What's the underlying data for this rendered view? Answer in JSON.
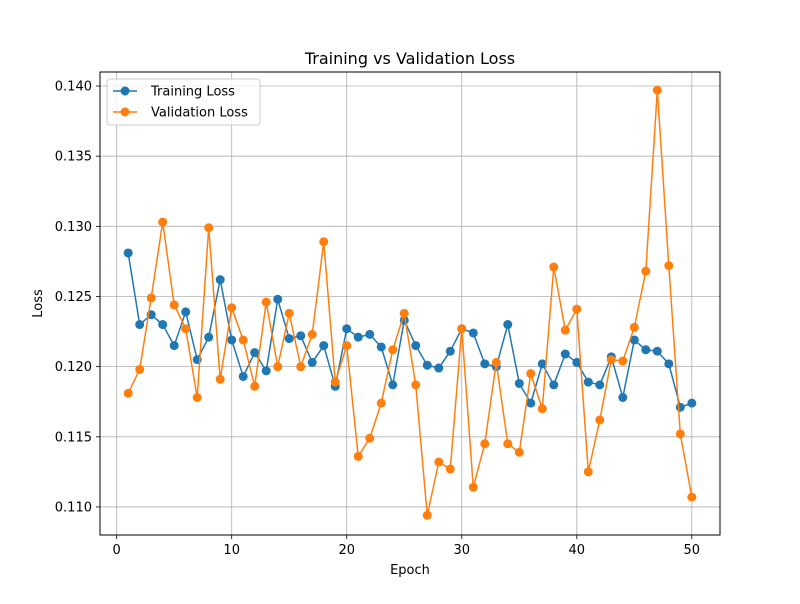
{
  "chart_data": {
    "type": "line",
    "title": "Training vs Validation Loss",
    "xlabel": "Epoch",
    "ylabel": "Loss",
    "xlim": [
      -1.45,
      52.45
    ],
    "ylim": [
      0.108,
      0.141
    ],
    "xticks": [
      0,
      10,
      20,
      30,
      40,
      50
    ],
    "yticks": [
      0.11,
      0.115,
      0.12,
      0.125,
      0.13,
      0.135,
      0.14
    ],
    "ytick_labels": [
      "0.110",
      "0.115",
      "0.120",
      "0.125",
      "0.130",
      "0.135",
      "0.140"
    ],
    "grid": true,
    "legend_position": "upper-left",
    "x": [
      1,
      2,
      3,
      4,
      5,
      6,
      7,
      8,
      9,
      10,
      11,
      12,
      13,
      14,
      15,
      16,
      17,
      18,
      19,
      20,
      21,
      22,
      23,
      24,
      25,
      26,
      27,
      28,
      29,
      30,
      31,
      32,
      33,
      34,
      35,
      36,
      37,
      38,
      39,
      40,
      41,
      42,
      43,
      44,
      45,
      46,
      47,
      48,
      49,
      50
    ],
    "series": [
      {
        "name": "Training Loss",
        "color": "#1f77b4",
        "marker": "circle",
        "values": [
          0.1281,
          0.123,
          0.1237,
          0.123,
          0.1215,
          0.1239,
          0.1205,
          0.1221,
          0.1262,
          0.1219,
          0.1193,
          0.121,
          0.1197,
          0.1248,
          0.122,
          0.1222,
          0.1203,
          0.1215,
          0.1186,
          0.1227,
          0.1221,
          0.1223,
          0.1214,
          0.1187,
          0.1233,
          0.1215,
          0.1201,
          0.1199,
          0.1211,
          0.1227,
          0.1224,
          0.1202,
          0.12,
          0.123,
          0.1188,
          0.1174,
          0.1202,
          0.1187,
          0.1209,
          0.1203,
          0.1189,
          0.1187,
          0.1207,
          0.1178,
          0.1219,
          0.1212,
          0.1211,
          0.1202,
          0.1171,
          0.1174
        ]
      },
      {
        "name": "Validation Loss",
        "color": "#ff7f0e",
        "marker": "circle",
        "values": [
          0.1181,
          0.1198,
          0.1249,
          0.1303,
          0.1244,
          0.1227,
          0.1178,
          0.1299,
          0.1191,
          0.1242,
          0.1219,
          0.1186,
          0.1246,
          0.12,
          0.1238,
          0.12,
          0.1223,
          0.1289,
          0.1189,
          0.1215,
          0.1136,
          0.1149,
          0.1174,
          0.1212,
          0.1238,
          0.1187,
          0.1094,
          0.1132,
          0.1127,
          0.1227,
          0.1114,
          0.1145,
          0.1203,
          0.1145,
          0.1139,
          0.1195,
          0.117,
          0.1271,
          0.1226,
          0.1241,
          0.1125,
          0.1162,
          0.1205,
          0.1204,
          0.1228,
          0.1268,
          0.1397,
          0.1272,
          0.1152,
          0.1107
        ]
      }
    ]
  }
}
